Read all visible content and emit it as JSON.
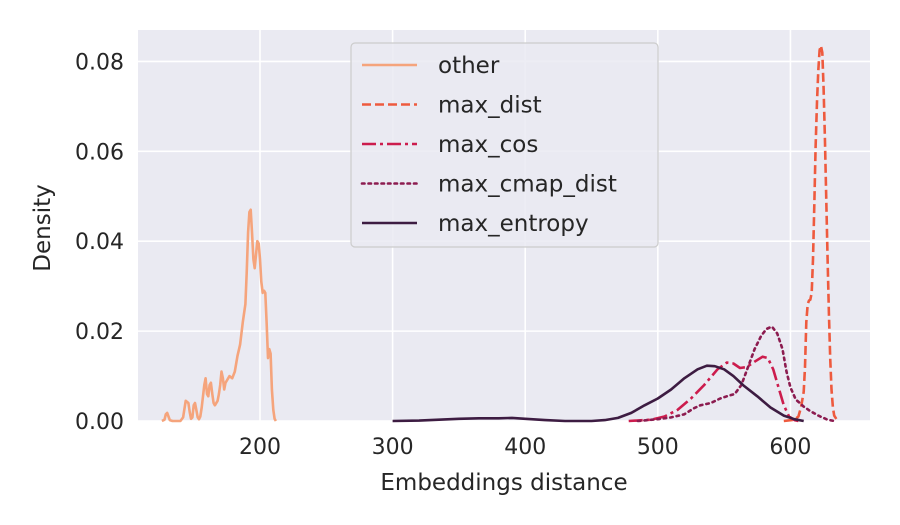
{
  "chart_data": {
    "type": "line",
    "title": "",
    "xlabel": "Embeddings distance",
    "ylabel": "Density",
    "xlim": [
      108,
      660
    ],
    "ylim": [
      0,
      0.087
    ],
    "xticks": [
      200,
      300,
      400,
      500,
      600
    ],
    "yticks": [
      0.0,
      0.02,
      0.04,
      0.06,
      0.08
    ],
    "xtick_labels": [
      "200",
      "300",
      "400",
      "500",
      "600"
    ],
    "ytick_labels": [
      "0.00",
      "0.02",
      "0.04",
      "0.06",
      "0.08"
    ],
    "grid": true,
    "legend_position": "top-center",
    "colors": {
      "background": "#eaeaf2",
      "grid": "#ffffff",
      "text": "#262626"
    },
    "series": [
      {
        "name": "other",
        "color": "#f5a47c",
        "dash": "solid",
        "points": [
          [
            126,
            0
          ],
          [
            128,
            0.0003
          ],
          [
            129,
            0.0015
          ],
          [
            130,
            0.0018
          ],
          [
            131,
            0.001
          ],
          [
            132,
            0.0002
          ],
          [
            134,
            0
          ],
          [
            140,
            0
          ],
          [
            142,
            0.0008
          ],
          [
            144,
            0.0045
          ],
          [
            146,
            0.004
          ],
          [
            147,
            0.002
          ],
          [
            148,
            0.0005
          ],
          [
            149,
            0.0008
          ],
          [
            150,
            0.0035
          ],
          [
            151,
            0.004
          ],
          [
            152,
            0.0025
          ],
          [
            153,
            0.0008
          ],
          [
            154,
            0.0004
          ],
          [
            155,
            0.001
          ],
          [
            156,
            0.003
          ],
          [
            158,
            0.008
          ],
          [
            159,
            0.0095
          ],
          [
            160,
            0.006
          ],
          [
            161,
            0.0055
          ],
          [
            162,
            0.008
          ],
          [
            163,
            0.0085
          ],
          [
            164,
            0.006
          ],
          [
            165,
            0.004
          ],
          [
            166,
            0.0035
          ],
          [
            168,
            0.0045
          ],
          [
            169,
            0.006
          ],
          [
            170,
            0.008
          ],
          [
            171,
            0.011
          ],
          [
            172,
            0.0095
          ],
          [
            173,
            0.007
          ],
          [
            174,
            0.0085
          ],
          [
            175,
            0.009
          ],
          [
            177,
            0.01
          ],
          [
            179,
            0.0095
          ],
          [
            181,
            0.011
          ],
          [
            183,
            0.0145
          ],
          [
            185,
            0.017
          ],
          [
            187,
            0.022
          ],
          [
            189,
            0.026
          ],
          [
            190,
            0.033
          ],
          [
            191,
            0.042
          ],
          [
            192,
            0.0465
          ],
          [
            193,
            0.047
          ],
          [
            194,
            0.042
          ],
          [
            195,
            0.036
          ],
          [
            196,
            0.034
          ],
          [
            197,
            0.037
          ],
          [
            198,
            0.04
          ],
          [
            199,
            0.0395
          ],
          [
            200,
            0.036
          ],
          [
            201,
            0.031
          ],
          [
            202,
            0.0285
          ],
          [
            203,
            0.029
          ],
          [
            204,
            0.0285
          ],
          [
            205,
            0.022
          ],
          [
            206,
            0.014
          ],
          [
            207,
            0.016
          ],
          [
            208,
            0.015
          ],
          [
            209,
            0.007
          ],
          [
            210,
            0.0025
          ],
          [
            211,
            0.0005
          ],
          [
            212,
            0
          ]
        ]
      },
      {
        "name": "max_dist",
        "color": "#ee5a3e",
        "dash": "dashed",
        "points": [
          [
            595,
            0
          ],
          [
            603,
            0.0003
          ],
          [
            606,
            0.001
          ],
          [
            608,
            0.003
          ],
          [
            610,
            0.0065
          ],
          [
            611,
            0.012
          ],
          [
            612,
            0.022
          ],
          [
            613,
            0.026
          ],
          [
            614,
            0.0268
          ],
          [
            615,
            0.027
          ],
          [
            616,
            0.0285
          ],
          [
            617,
            0.036
          ],
          [
            618,
            0.048
          ],
          [
            619,
            0.061
          ],
          [
            620,
            0.071
          ],
          [
            621,
            0.078
          ],
          [
            622,
            0.0825
          ],
          [
            623,
            0.0835
          ],
          [
            624,
            0.082
          ],
          [
            625,
            0.074
          ],
          [
            626,
            0.063
          ],
          [
            627,
            0.05
          ],
          [
            628,
            0.036
          ],
          [
            629,
            0.024
          ],
          [
            630,
            0.014
          ],
          [
            631,
            0.007
          ],
          [
            632,
            0.003
          ],
          [
            633,
            0.0012
          ],
          [
            635,
            0.0003
          ],
          [
            637,
            0
          ]
        ]
      },
      {
        "name": "max_cos",
        "color": "#cc1c4d",
        "dash": "dashdot",
        "points": [
          [
            478,
            0
          ],
          [
            495,
            0.0003
          ],
          [
            505,
            0.001
          ],
          [
            515,
            0.0025
          ],
          [
            525,
            0.005
          ],
          [
            535,
            0.008
          ],
          [
            545,
            0.0115
          ],
          [
            552,
            0.013
          ],
          [
            557,
            0.0128
          ],
          [
            562,
            0.0118
          ],
          [
            567,
            0.012
          ],
          [
            573,
            0.0132
          ],
          [
            579,
            0.0143
          ],
          [
            583,
            0.014
          ],
          [
            587,
            0.0115
          ],
          [
            591,
            0.0075
          ],
          [
            595,
            0.0035
          ],
          [
            599,
            0.001
          ],
          [
            603,
            0.0002
          ],
          [
            606,
            0
          ]
        ]
      },
      {
        "name": "max_cmap_dist",
        "color": "#8c1c50",
        "dash": "dotted",
        "points": [
          [
            485,
            0
          ],
          [
            500,
            0.0004
          ],
          [
            510,
            0.0008
          ],
          [
            520,
            0.0015
          ],
          [
            527,
            0.0028
          ],
          [
            532,
            0.0035
          ],
          [
            540,
            0.004
          ],
          [
            547,
            0.005
          ],
          [
            552,
            0.0055
          ],
          [
            558,
            0.006
          ],
          [
            563,
            0.008
          ],
          [
            568,
            0.012
          ],
          [
            573,
            0.016
          ],
          [
            578,
            0.019
          ],
          [
            582,
            0.0205
          ],
          [
            586,
            0.021
          ],
          [
            590,
            0.0195
          ],
          [
            594,
            0.016
          ],
          [
            597,
            0.011
          ],
          [
            600,
            0.0075
          ],
          [
            604,
            0.0048
          ],
          [
            610,
            0.0032
          ],
          [
            615,
            0.0022
          ],
          [
            621,
            0.0012
          ],
          [
            628,
            0.0003
          ],
          [
            633,
            0
          ]
        ]
      },
      {
        "name": "max_entropy",
        "color": "#3d1c42",
        "dash": "solid",
        "points": [
          [
            300,
            0
          ],
          [
            320,
            0.0001
          ],
          [
            335,
            0.0003
          ],
          [
            350,
            0.0005
          ],
          [
            365,
            0.0006
          ],
          [
            380,
            0.0006
          ],
          [
            390,
            0.0007
          ],
          [
            400,
            0.0005
          ],
          [
            415,
            0.0002
          ],
          [
            430,
            0
          ],
          [
            450,
            0
          ],
          [
            460,
            0.0002
          ],
          [
            470,
            0.0007
          ],
          [
            480,
            0.0018
          ],
          [
            490,
            0.0035
          ],
          [
            500,
            0.005
          ],
          [
            510,
            0.007
          ],
          [
            520,
            0.0095
          ],
          [
            530,
            0.0115
          ],
          [
            537,
            0.0123
          ],
          [
            543,
            0.0122
          ],
          [
            550,
            0.0115
          ],
          [
            557,
            0.01
          ],
          [
            565,
            0.0078
          ],
          [
            575,
            0.0055
          ],
          [
            585,
            0.003
          ],
          [
            595,
            0.0012
          ],
          [
            603,
            0.0004
          ],
          [
            610,
            0
          ]
        ]
      }
    ]
  }
}
